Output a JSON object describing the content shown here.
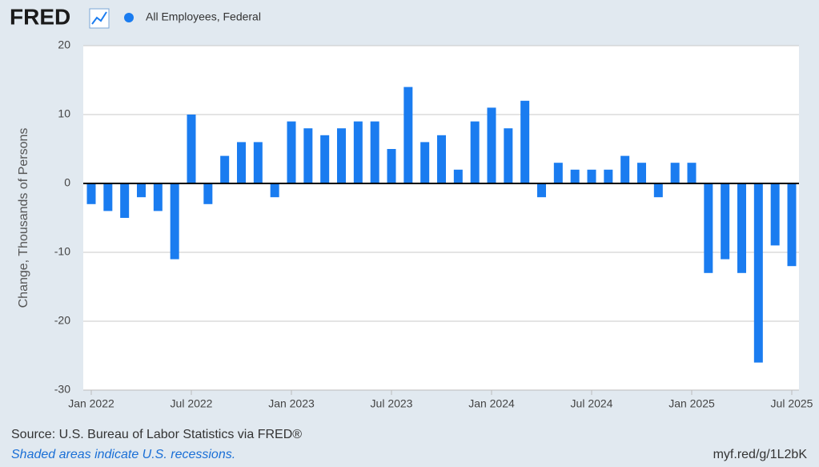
{
  "logo": "FRED",
  "chart_data": {
    "type": "bar",
    "series": [
      {
        "name": "All Employees, Federal",
        "color": "#1a7cf0",
        "values": [
          -3,
          -4,
          -5,
          -2,
          -4,
          -11,
          10,
          -3,
          4,
          6,
          6,
          -2,
          9,
          8,
          7,
          8,
          9,
          9,
          5,
          14,
          6,
          7,
          2,
          9,
          11,
          8,
          12,
          -2,
          3,
          2,
          2,
          2,
          4,
          3,
          -2,
          3,
          3,
          -13,
          -11,
          -13,
          -26,
          -9,
          -12
        ]
      }
    ],
    "categories": [
      "Jan 2022",
      null,
      null,
      null,
      null,
      null,
      "Jul 2022",
      null,
      null,
      null,
      null,
      null,
      "Jan 2023",
      null,
      null,
      null,
      null,
      null,
      "Jul 2023",
      null,
      null,
      null,
      null,
      null,
      "Jan 2024",
      null,
      null,
      null,
      null,
      null,
      "Jul 2024",
      null,
      null,
      null,
      null,
      null,
      "Jan 2025",
      null,
      null,
      null,
      null,
      null,
      "Jul 2025"
    ],
    "y_label": "Change, Thousands of Persons",
    "ylim": [
      -30,
      20
    ],
    "yticks": [
      -30,
      -20,
      -10,
      0,
      10,
      20
    ],
    "grid": true,
    "source": "Source: U.S. Bureau of Labor Statistics via FRED®",
    "note": "Shaded areas indicate U.S. recessions.",
    "link": "myf.red/g/1L2bK"
  }
}
